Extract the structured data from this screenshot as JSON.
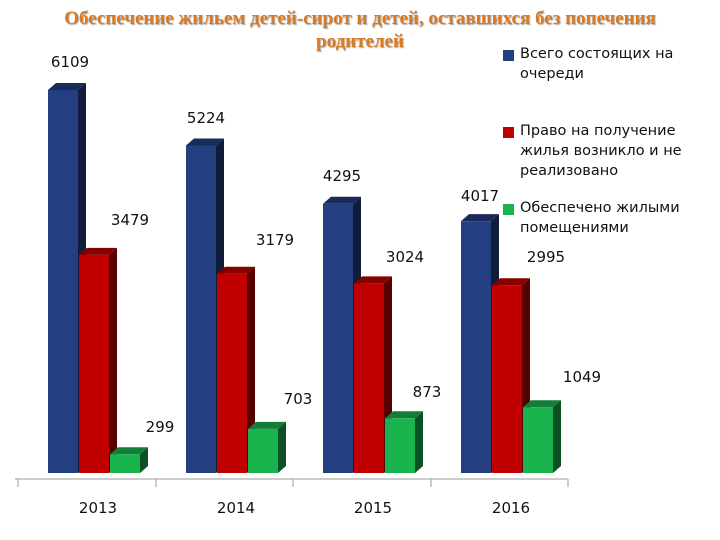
{
  "title_lines": [
    "Обеспечение жильем детей-сирот и детей, оставшихся без попечения",
    "родителей"
  ],
  "colors": {
    "title": "#d97a22"
  },
  "chart_data": {
    "type": "bar",
    "categories": [
      "2013",
      "2014",
      "2015",
      "2016"
    ],
    "series": [
      {
        "name": "Всего состоящих на очереди",
        "values": [
          6109,
          5224,
          4295,
          4017
        ],
        "color": "#243f7f"
      },
      {
        "name": "Право на получение жилья возникло и не реализовано",
        "values": [
          3479,
          3179,
          3024,
          2995
        ],
        "color": "#c00000"
      },
      {
        "name": "Обеспечено жилыми помещениями",
        "values": [
          299,
          703,
          873,
          1049
        ],
        "color": "#1ab44e"
      }
    ],
    "ylim": [
      0,
      6500
    ],
    "legend_position": "right",
    "grid": false,
    "style": "3d-column"
  }
}
